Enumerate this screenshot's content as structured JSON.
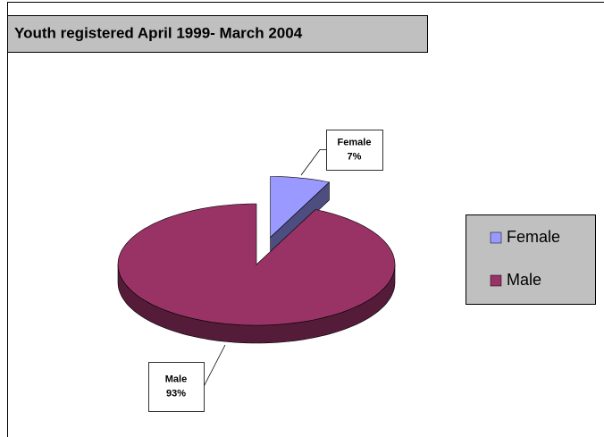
{
  "chart_data": {
    "type": "pie",
    "title": "Youth registered April 1999- March 2004",
    "categories": [
      "Female",
      "Male"
    ],
    "values": [
      7,
      93
    ],
    "value_labels": [
      "7%",
      "93%"
    ],
    "colors": [
      "#9999ff",
      "#993366"
    ],
    "legend": "right",
    "exploded": [
      true,
      false
    ]
  }
}
